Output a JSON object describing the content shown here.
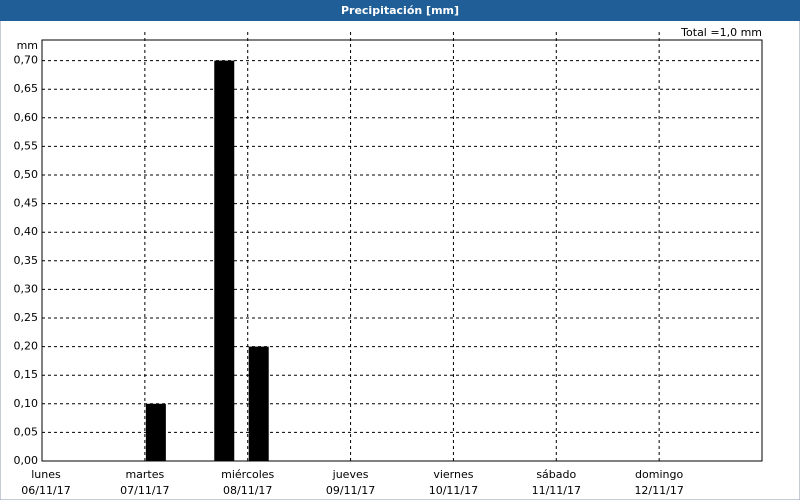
{
  "chart_data": {
    "type": "bar",
    "title": "Precipitación [mm]",
    "y_unit": "mm",
    "total_label": "Total =1,0 mm",
    "x": [
      1.107,
      1.772,
      2.107
    ],
    "values": [
      0.1,
      0.7,
      0.2
    ],
    "color": "#000000",
    "xlim": [
      0,
      7
    ],
    "xticks": [
      {
        "value": 0,
        "weekday": "lunes",
        "date": "06/11/17"
      },
      {
        "value": 1,
        "weekday": "martes",
        "date": "07/11/17"
      },
      {
        "value": 2,
        "weekday": "miércoles",
        "date": "08/11/17"
      },
      {
        "value": 3,
        "weekday": "jueves",
        "date": "09/11/17"
      },
      {
        "value": 4,
        "weekday": "viernes",
        "date": "10/11/17"
      },
      {
        "value": 5,
        "weekday": "sábado",
        "date": "11/11/17"
      },
      {
        "value": 6,
        "weekday": "domingo",
        "date": "12/11/17"
      }
    ],
    "ylim": [
      0,
      0.75
    ],
    "yticks": [
      {
        "value": 0,
        "label": "0,00"
      },
      {
        "value": 0.05,
        "label": "0,05"
      },
      {
        "value": 0.1,
        "label": "0,10"
      },
      {
        "value": 0.15,
        "label": "0,15"
      },
      {
        "value": 0.2,
        "label": "0,20"
      },
      {
        "value": 0.25,
        "label": "0,25"
      },
      {
        "value": 0.3,
        "label": "0,30"
      },
      {
        "value": 0.35,
        "label": "0,35"
      },
      {
        "value": 0.4,
        "label": "0,40"
      },
      {
        "value": 0.45,
        "label": "0,45"
      },
      {
        "value": 0.5,
        "label": "0,50"
      },
      {
        "value": 0.55,
        "label": "0,55"
      },
      {
        "value": 0.6,
        "label": "0,60"
      },
      {
        "value": 0.65,
        "label": "0,65"
      },
      {
        "value": 0.7,
        "label": "0,70"
      }
    ],
    "grid": true
  }
}
